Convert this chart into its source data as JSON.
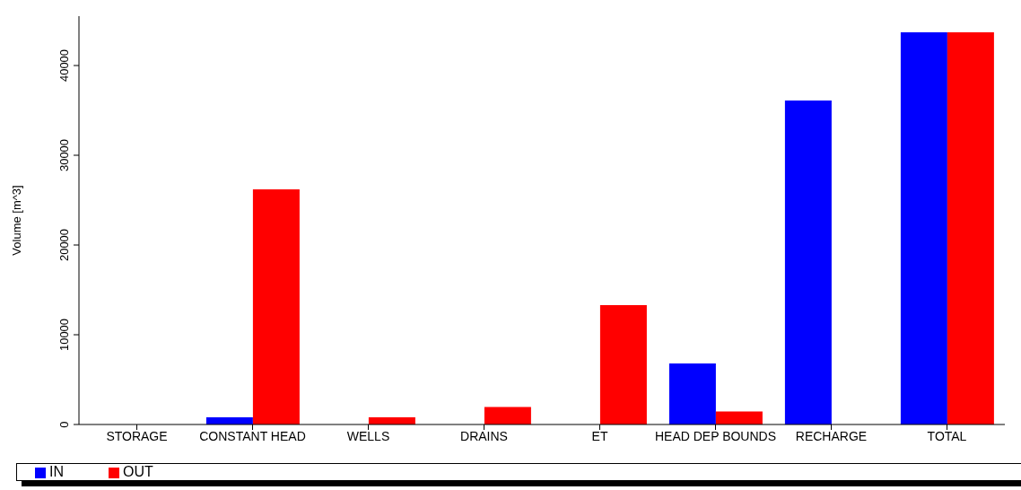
{
  "chart_data": {
    "type": "bar",
    "ylabel": "Volume [m^3]",
    "categories": [
      "STORAGE",
      "CONSTANT HEAD",
      "WELLS",
      "DRAINS",
      "ET",
      "HEAD DEP BOUNDS",
      "RECHARGE",
      "TOTAL"
    ],
    "series": [
      {
        "name": "IN",
        "color": "#0000ff",
        "values": [
          0,
          800,
          0,
          0,
          0,
          6800,
          36100,
          43700
        ]
      },
      {
        "name": "OUT",
        "color": "#ff0000",
        "values": [
          0,
          26200,
          800,
          1950,
          13300,
          1450,
          0,
          43700
        ]
      }
    ],
    "ylim": [
      0,
      45500
    ],
    "yticks": [
      0,
      10000,
      20000,
      30000,
      40000
    ],
    "grid": false,
    "legend": "bottom"
  }
}
